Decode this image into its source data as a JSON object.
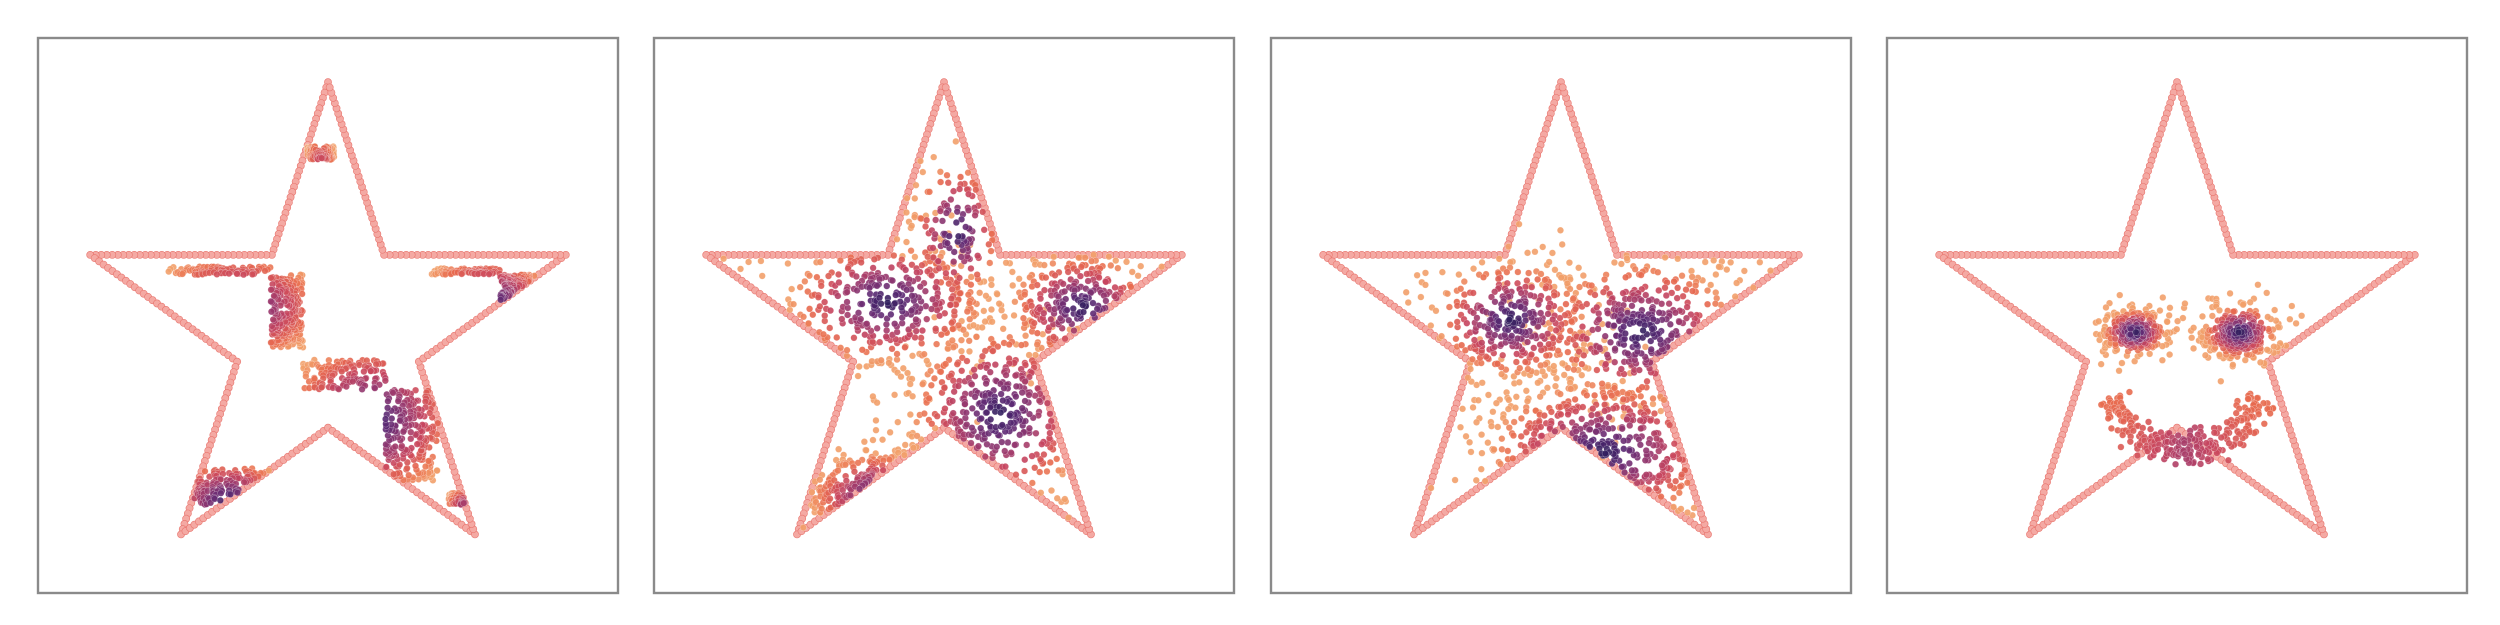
{
  "chart_data": [
    {
      "type": "scatter",
      "boundary": "star",
      "pattern": "checkerboard",
      "grid": false,
      "xlim": [
        -1.1,
        1.1
      ],
      "ylim": [
        -1.1,
        1.1
      ],
      "point_cmap": [
        "#2d1e5c",
        "#5e2a74",
        "#96386f",
        "#c8465e",
        "#e86a4f",
        "#f2a06a"
      ],
      "boundary_color": "#f4a9a3",
      "boundary_edge_color": "#e8756e",
      "clusters": [
        {
          "cx": -0.37,
          "cy": 0.1,
          "sx": 0.2,
          "sy": 0.12,
          "n": 320
        },
        {
          "cx": 0.17,
          "cy": -0.35,
          "sx": 0.2,
          "sy": 0.18,
          "n": 360
        },
        {
          "cx": 0.63,
          "cy": 0.12,
          "sx": 0.16,
          "sy": 0.1,
          "n": 220
        },
        {
          "cx": -0.03,
          "cy": 0.5,
          "sx": 0.04,
          "sy": 0.18,
          "n": 110
        },
        {
          "cx": -0.4,
          "cy": -0.68,
          "sx": 0.14,
          "sy": 0.1,
          "n": 120
        },
        {
          "cx": 0.55,
          "cy": -0.75,
          "sx": 0.05,
          "sy": 0.08,
          "n": 50
        }
      ]
    },
    {
      "type": "scatter",
      "boundary": "star",
      "pattern": "diffusing",
      "grid": false,
      "xlim": [
        -1.1,
        1.1
      ],
      "ylim": [
        -1.1,
        1.1
      ],
      "point_cmap": [
        "#2d1e5c",
        "#5e2a74",
        "#96386f",
        "#c8465e",
        "#e86a4f",
        "#f2a06a"
      ],
      "boundary_color": "#f4a9a3",
      "boundary_edge_color": "#e8756e",
      "clusters": [
        {
          "cx": -0.23,
          "cy": 0.12,
          "sx": 0.22,
          "sy": 0.14,
          "n": 380
        },
        {
          "cx": 0.22,
          "cy": -0.33,
          "sx": 0.2,
          "sy": 0.2,
          "n": 380
        },
        {
          "cx": 0.55,
          "cy": 0.1,
          "sx": 0.16,
          "sy": 0.12,
          "n": 240
        },
        {
          "cx": -0.25,
          "cy": -0.66,
          "sx": 0.16,
          "sy": 0.1,
          "n": 150
        },
        {
          "cx": 0.05,
          "cy": 0.4,
          "sx": 0.1,
          "sy": 0.16,
          "n": 130
        }
      ]
    },
    {
      "type": "scatter",
      "boundary": "star",
      "pattern": "mixing",
      "grid": false,
      "xlim": [
        -1.1,
        1.1
      ],
      "ylim": [
        -1.1,
        1.1
      ],
      "point_cmap": [
        "#2d1e5c",
        "#5e2a74",
        "#96386f",
        "#c8465e",
        "#e86a4f",
        "#f2a06a"
      ],
      "boundary_color": "#f4a9a3",
      "boundary_edge_color": "#e8756e",
      "clusters": [
        {
          "cx": -0.2,
          "cy": 0.05,
          "sx": 0.17,
          "sy": 0.13,
          "n": 380
        },
        {
          "cx": 0.32,
          "cy": 0.0,
          "sx": 0.22,
          "sy": 0.16,
          "n": 380
        },
        {
          "cx": 0.17,
          "cy": -0.48,
          "sx": 0.26,
          "sy": 0.16,
          "n": 380
        }
      ]
    },
    {
      "type": "scatter",
      "boundary": "star",
      "pattern": "smiley",
      "grid": false,
      "xlim": [
        -1.1,
        1.1
      ],
      "ylim": [
        -1.1,
        1.1
      ],
      "point_cmap": [
        "#2d1e5c",
        "#5e2a74",
        "#96386f",
        "#c8465e",
        "#e86a4f",
        "#f2a06a"
      ],
      "boundary_color": "#f4a9a3",
      "boundary_edge_color": "#e8756e",
      "clusters": [
        {
          "cx": -0.17,
          "cy": 0.0,
          "sx": 0.07,
          "sy": 0.05,
          "n": 260
        },
        {
          "cx": 0.25,
          "cy": 0.0,
          "sx": 0.08,
          "sy": 0.06,
          "n": 280
        }
      ],
      "arcs": [
        {
          "cx": 0.03,
          "cy": -0.15,
          "r": 0.32,
          "theta_start_deg": 200,
          "theta_end_deg": 340,
          "width": 0.035,
          "n": 260
        }
      ]
    }
  ]
}
